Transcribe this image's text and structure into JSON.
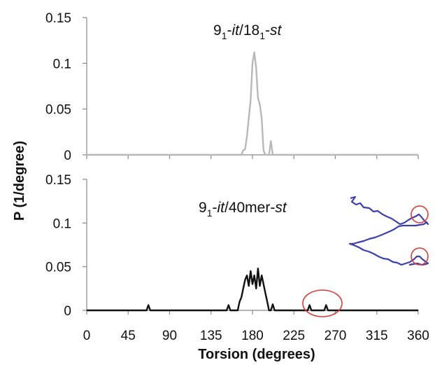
{
  "chart_data": {
    "type": "line",
    "xlabel": "Torsion (degrees)",
    "ylabel": "P (1/degree)",
    "x_ticks": [
      "0",
      "45",
      "90",
      "135",
      "180",
      "225",
      "270",
      "315",
      "360"
    ],
    "xlim": [
      0,
      360
    ],
    "panels": [
      {
        "label_base": "9",
        "label_sub": "1",
        "label_sep": "-",
        "label_it": "it",
        "label_mid": "/18",
        "label_sub2": "1",
        "label_sep2": "-",
        "label_st": "st",
        "ylim": [
          0,
          0.15
        ],
        "y_ticks": [
          "0",
          "0.05",
          "0.1",
          "0.15"
        ],
        "color": "#b8b8b8",
        "series": [
          {
            "x": [
              0,
              168,
              170,
              172,
              174,
              176,
              178,
              180,
              182,
              184,
              186,
              188,
              190,
              192,
              194,
              196,
              198,
              200,
              202,
              204,
              360
            ],
            "y": [
              0,
              0,
              0.005,
              0.006,
              0.02,
              0.04,
              0.06,
              0.1,
              0.112,
              0.095,
              0.062,
              0.055,
              0.04,
              0.005,
              0,
              0,
              0,
              0.015,
              0,
              0,
              0
            ]
          }
        ]
      },
      {
        "label_base": "9",
        "label_sub": "1",
        "label_sep": "-",
        "label_it": "it",
        "label_mid": "/40mer-",
        "label_st": "st",
        "ylim": [
          0,
          0.15
        ],
        "y_ticks": [
          "0",
          "0.05",
          "0.1",
          "0.15"
        ],
        "color": "#111111",
        "series": [
          {
            "x": [
              0,
              65,
              67,
              69,
              152,
              154,
              156,
              164,
              166,
              168,
              170,
              172,
              174,
              176,
              178,
              180,
              182,
              184,
              186,
              188,
              190,
              192,
              194,
              196,
              198,
              200,
              202,
              204,
              206,
              240,
              242,
              244,
              258,
              260,
              262,
              360
            ],
            "y": [
              0,
              0,
              0.006,
              0,
              0,
              0.006,
              0,
              0,
              0.01,
              0.015,
              0.025,
              0.035,
              0.04,
              0.028,
              0.045,
              0.03,
              0.04,
              0.025,
              0.048,
              0.028,
              0.04,
              0.03,
              0.02,
              0.01,
              0,
              0,
              0.007,
              0,
              0,
              0,
              0.006,
              0,
              0,
              0.006,
              0,
              0
            ]
          }
        ]
      }
    ],
    "annotations": [
      {
        "kind": "circle",
        "color": "#e03a3a",
        "panel": 1,
        "around_x": [
          228,
          270
        ]
      },
      {
        "kind": "inset",
        "description": "polymer chain trace",
        "color": "#3b3fb0"
      }
    ]
  }
}
